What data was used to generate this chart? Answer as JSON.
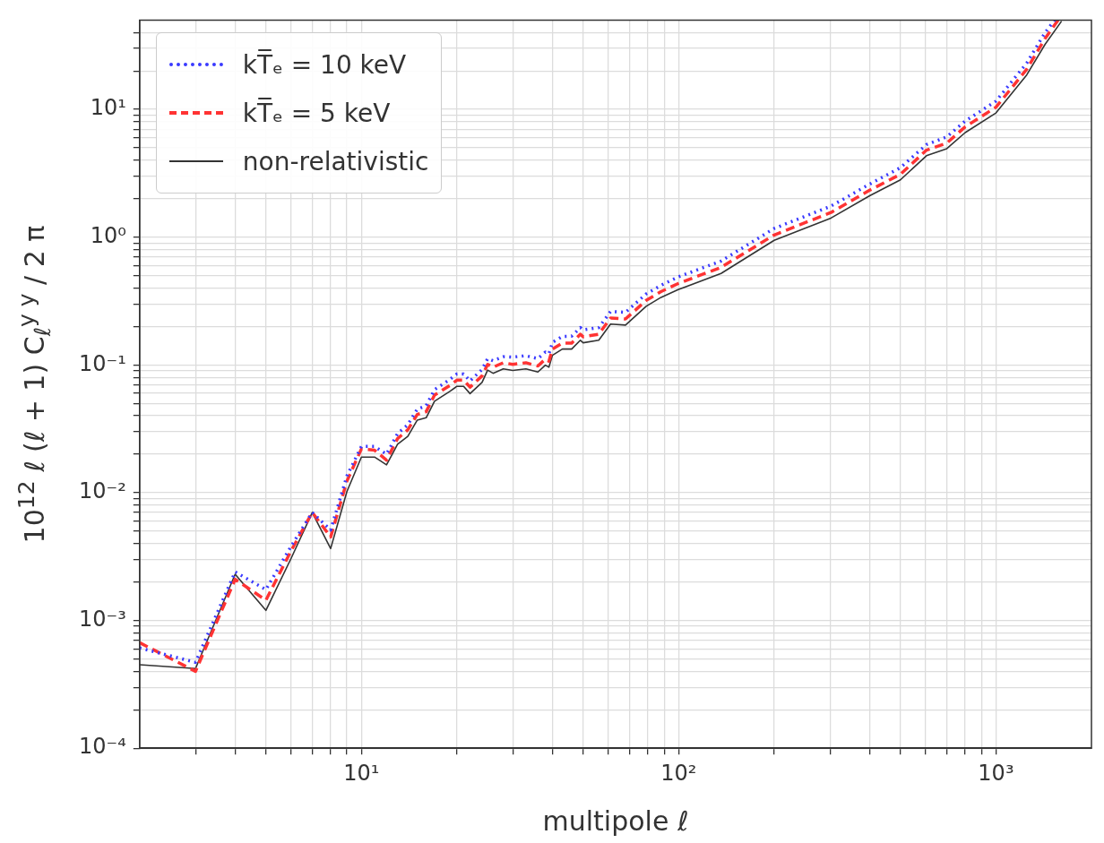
{
  "chart_data": {
    "type": "line",
    "xlabel": "multipole ℓ",
    "ylabel": "10$^{12}$ ℓ (ℓ + 1) C$_{ℓ}$$^{y y}$ / 2 π",
    "log": "xy",
    "grid": true,
    "legend": "top left",
    "marker": "none",
    "xlim": [
      2,
      2000
    ],
    "ylim": [
      0.0001,
      50
    ],
    "xticks": [
      {
        "value": 3,
        "label": null
      },
      {
        "value": 4,
        "label": null
      },
      {
        "value": 5,
        "label": null
      },
      {
        "value": 6,
        "label": null
      },
      {
        "value": 7,
        "label": null
      },
      {
        "value": 8,
        "label": null
      },
      {
        "value": 9,
        "label": null
      },
      {
        "value": 10,
        "label": "10¹"
      },
      {
        "value": 20,
        "label": null
      },
      {
        "value": 30,
        "label": null
      },
      {
        "value": 40,
        "label": null
      },
      {
        "value": 50,
        "label": null
      },
      {
        "value": 60,
        "label": null
      },
      {
        "value": 70,
        "label": null
      },
      {
        "value": 80,
        "label": null
      },
      {
        "value": 90,
        "label": null
      },
      {
        "value": 100,
        "label": "10²"
      },
      {
        "value": 200,
        "label": null
      },
      {
        "value": 300,
        "label": null
      },
      {
        "value": 400,
        "label": null
      },
      {
        "value": 500,
        "label": null
      },
      {
        "value": 600,
        "label": null
      },
      {
        "value": 700,
        "label": null
      },
      {
        "value": 800,
        "label": null
      },
      {
        "value": 900,
        "label": null
      },
      {
        "value": 1000,
        "label": "10³"
      }
    ],
    "yticks": [
      {
        "value": 0.0001,
        "label": "10⁻⁴"
      },
      {
        "value": 0.0002,
        "label": null
      },
      {
        "value": 0.0003,
        "label": null
      },
      {
        "value": 0.0004,
        "label": null
      },
      {
        "value": 0.0005,
        "label": null
      },
      {
        "value": 0.0006,
        "label": null
      },
      {
        "value": 0.0007,
        "label": null
      },
      {
        "value": 0.0008,
        "label": null
      },
      {
        "value": 0.0009,
        "label": null
      },
      {
        "value": 0.001,
        "label": "10⁻³"
      },
      {
        "value": 0.002,
        "label": null
      },
      {
        "value": 0.003,
        "label": null
      },
      {
        "value": 0.004,
        "label": null
      },
      {
        "value": 0.005,
        "label": null
      },
      {
        "value": 0.006,
        "label": null
      },
      {
        "value": 0.007,
        "label": null
      },
      {
        "value": 0.008,
        "label": null
      },
      {
        "value": 0.009,
        "label": null
      },
      {
        "value": 0.01,
        "label": "10⁻²"
      },
      {
        "value": 0.02,
        "label": null
      },
      {
        "value": 0.03,
        "label": null
      },
      {
        "value": 0.04,
        "label": null
      },
      {
        "value": 0.05,
        "label": null
      },
      {
        "value": 0.06,
        "label": null
      },
      {
        "value": 0.07,
        "label": null
      },
      {
        "value": 0.08,
        "label": null
      },
      {
        "value": 0.09,
        "label": null
      },
      {
        "value": 0.1,
        "label": "10⁻¹"
      },
      {
        "value": 0.2,
        "label": null
      },
      {
        "value": 0.3,
        "label": null
      },
      {
        "value": 0.4,
        "label": null
      },
      {
        "value": 0.5,
        "label": null
      },
      {
        "value": 0.6,
        "label": null
      },
      {
        "value": 0.7,
        "label": null
      },
      {
        "value": 0.8,
        "label": null
      },
      {
        "value": 0.9,
        "label": null
      },
      {
        "value": 1,
        "label": "10⁰"
      },
      {
        "value": 2,
        "label": null
      },
      {
        "value": 3,
        "label": null
      },
      {
        "value": 4,
        "label": null
      },
      {
        "value": 5,
        "label": null
      },
      {
        "value": 6,
        "label": null
      },
      {
        "value": 7,
        "label": null
      },
      {
        "value": 8,
        "label": null
      },
      {
        "value": 9,
        "label": null
      },
      {
        "value": 10,
        "label": "10¹"
      },
      {
        "value": 20,
        "label": null
      },
      {
        "value": 30,
        "label": null
      },
      {
        "value": 40,
        "label": null
      }
    ],
    "series": [
      {
        "name": "kT̅ₑ = 10 keV",
        "color": "#3a3aff",
        "line_style": "dotted",
        "x": [
          2,
          3,
          4,
          5,
          6,
          7,
          8,
          9,
          10,
          11,
          12,
          13,
          14,
          15,
          16,
          17,
          19,
          20,
          21,
          22,
          24,
          25,
          26,
          28,
          30,
          33,
          36,
          38,
          39,
          40,
          43,
          46,
          49,
          50,
          56,
          61,
          68,
          79,
          88,
          100,
          136,
          200,
          302,
          400,
          500,
          604,
          700,
          800,
          1000,
          1250,
          1430,
          1530
        ],
        "values": [
          0.00061,
          0.00047,
          0.0024,
          0.00174,
          0.0038,
          0.007,
          0.0051,
          0.0135,
          0.023,
          0.023,
          0.02,
          0.029,
          0.034,
          0.045,
          0.048,
          0.064,
          0.077,
          0.085,
          0.085,
          0.075,
          0.092,
          0.112,
          0.108,
          0.116,
          0.115,
          0.118,
          0.112,
          0.126,
          0.122,
          0.15,
          0.167,
          0.168,
          0.196,
          0.188,
          0.196,
          0.262,
          0.258,
          0.36,
          0.42,
          0.49,
          0.65,
          1.17,
          1.75,
          2.6,
          3.5,
          5.3,
          6.1,
          8.1,
          11.6,
          23,
          40,
          50
        ]
      },
      {
        "name": "kT̅ₑ = 5 keV",
        "color": "#ff3333",
        "line_style": "dashed",
        "x": [
          2,
          3,
          4,
          5,
          6,
          7,
          8,
          9,
          10,
          11,
          12,
          13,
          14,
          15,
          16,
          17,
          19,
          20,
          21,
          22,
          24,
          25,
          26,
          28,
          30,
          33,
          36,
          38,
          39,
          40,
          43,
          46,
          49,
          50,
          56,
          61,
          68,
          79,
          88,
          100,
          136,
          200,
          302,
          400,
          500,
          604,
          700,
          800,
          1000,
          1250,
          1430,
          1570
        ],
        "values": [
          0.00067,
          0.0004,
          0.0021,
          0.00144,
          0.0035,
          0.007,
          0.0045,
          0.0123,
          0.022,
          0.0215,
          0.018,
          0.0265,
          0.031,
          0.041,
          0.043,
          0.058,
          0.069,
          0.076,
          0.076,
          0.067,
          0.082,
          0.101,
          0.096,
          0.104,
          0.101,
          0.104,
          0.098,
          0.111,
          0.107,
          0.133,
          0.148,
          0.148,
          0.174,
          0.166,
          0.174,
          0.233,
          0.229,
          0.32,
          0.375,
          0.435,
          0.58,
          1.04,
          1.56,
          2.33,
          3.1,
          4.8,
          5.45,
          7.3,
          10.4,
          20.6,
          36,
          50
        ]
      },
      {
        "name": "non-relativistic",
        "color": "#333333",
        "line_style": "solid",
        "x": [
          2,
          3,
          4,
          5,
          6,
          7,
          8,
          9,
          10,
          11,
          12,
          13,
          14,
          15,
          16,
          17,
          19,
          20,
          21,
          22,
          24,
          25,
          26,
          28,
          30,
          33,
          36,
          38,
          39,
          40,
          43,
          46,
          49,
          50,
          56,
          61,
          68,
          79,
          88,
          100,
          136,
          200,
          302,
          400,
          500,
          604,
          700,
          800,
          1000,
          1250,
          1430,
          1610
        ],
        "values": [
          0.00045,
          0.00042,
          0.0023,
          0.0012,
          0.00305,
          0.007,
          0.00365,
          0.0102,
          0.019,
          0.019,
          0.0165,
          0.0239,
          0.0276,
          0.037,
          0.0386,
          0.052,
          0.062,
          0.068,
          0.068,
          0.0596,
          0.073,
          0.091,
          0.086,
          0.093,
          0.0906,
          0.093,
          0.088,
          0.0996,
          0.096,
          0.119,
          0.133,
          0.133,
          0.156,
          0.149,
          0.156,
          0.209,
          0.205,
          0.288,
          0.338,
          0.39,
          0.52,
          0.944,
          1.41,
          2.11,
          2.81,
          4.34,
          4.93,
          6.58,
          9.37,
          18.6,
          32.4,
          49
        ]
      }
    ]
  }
}
